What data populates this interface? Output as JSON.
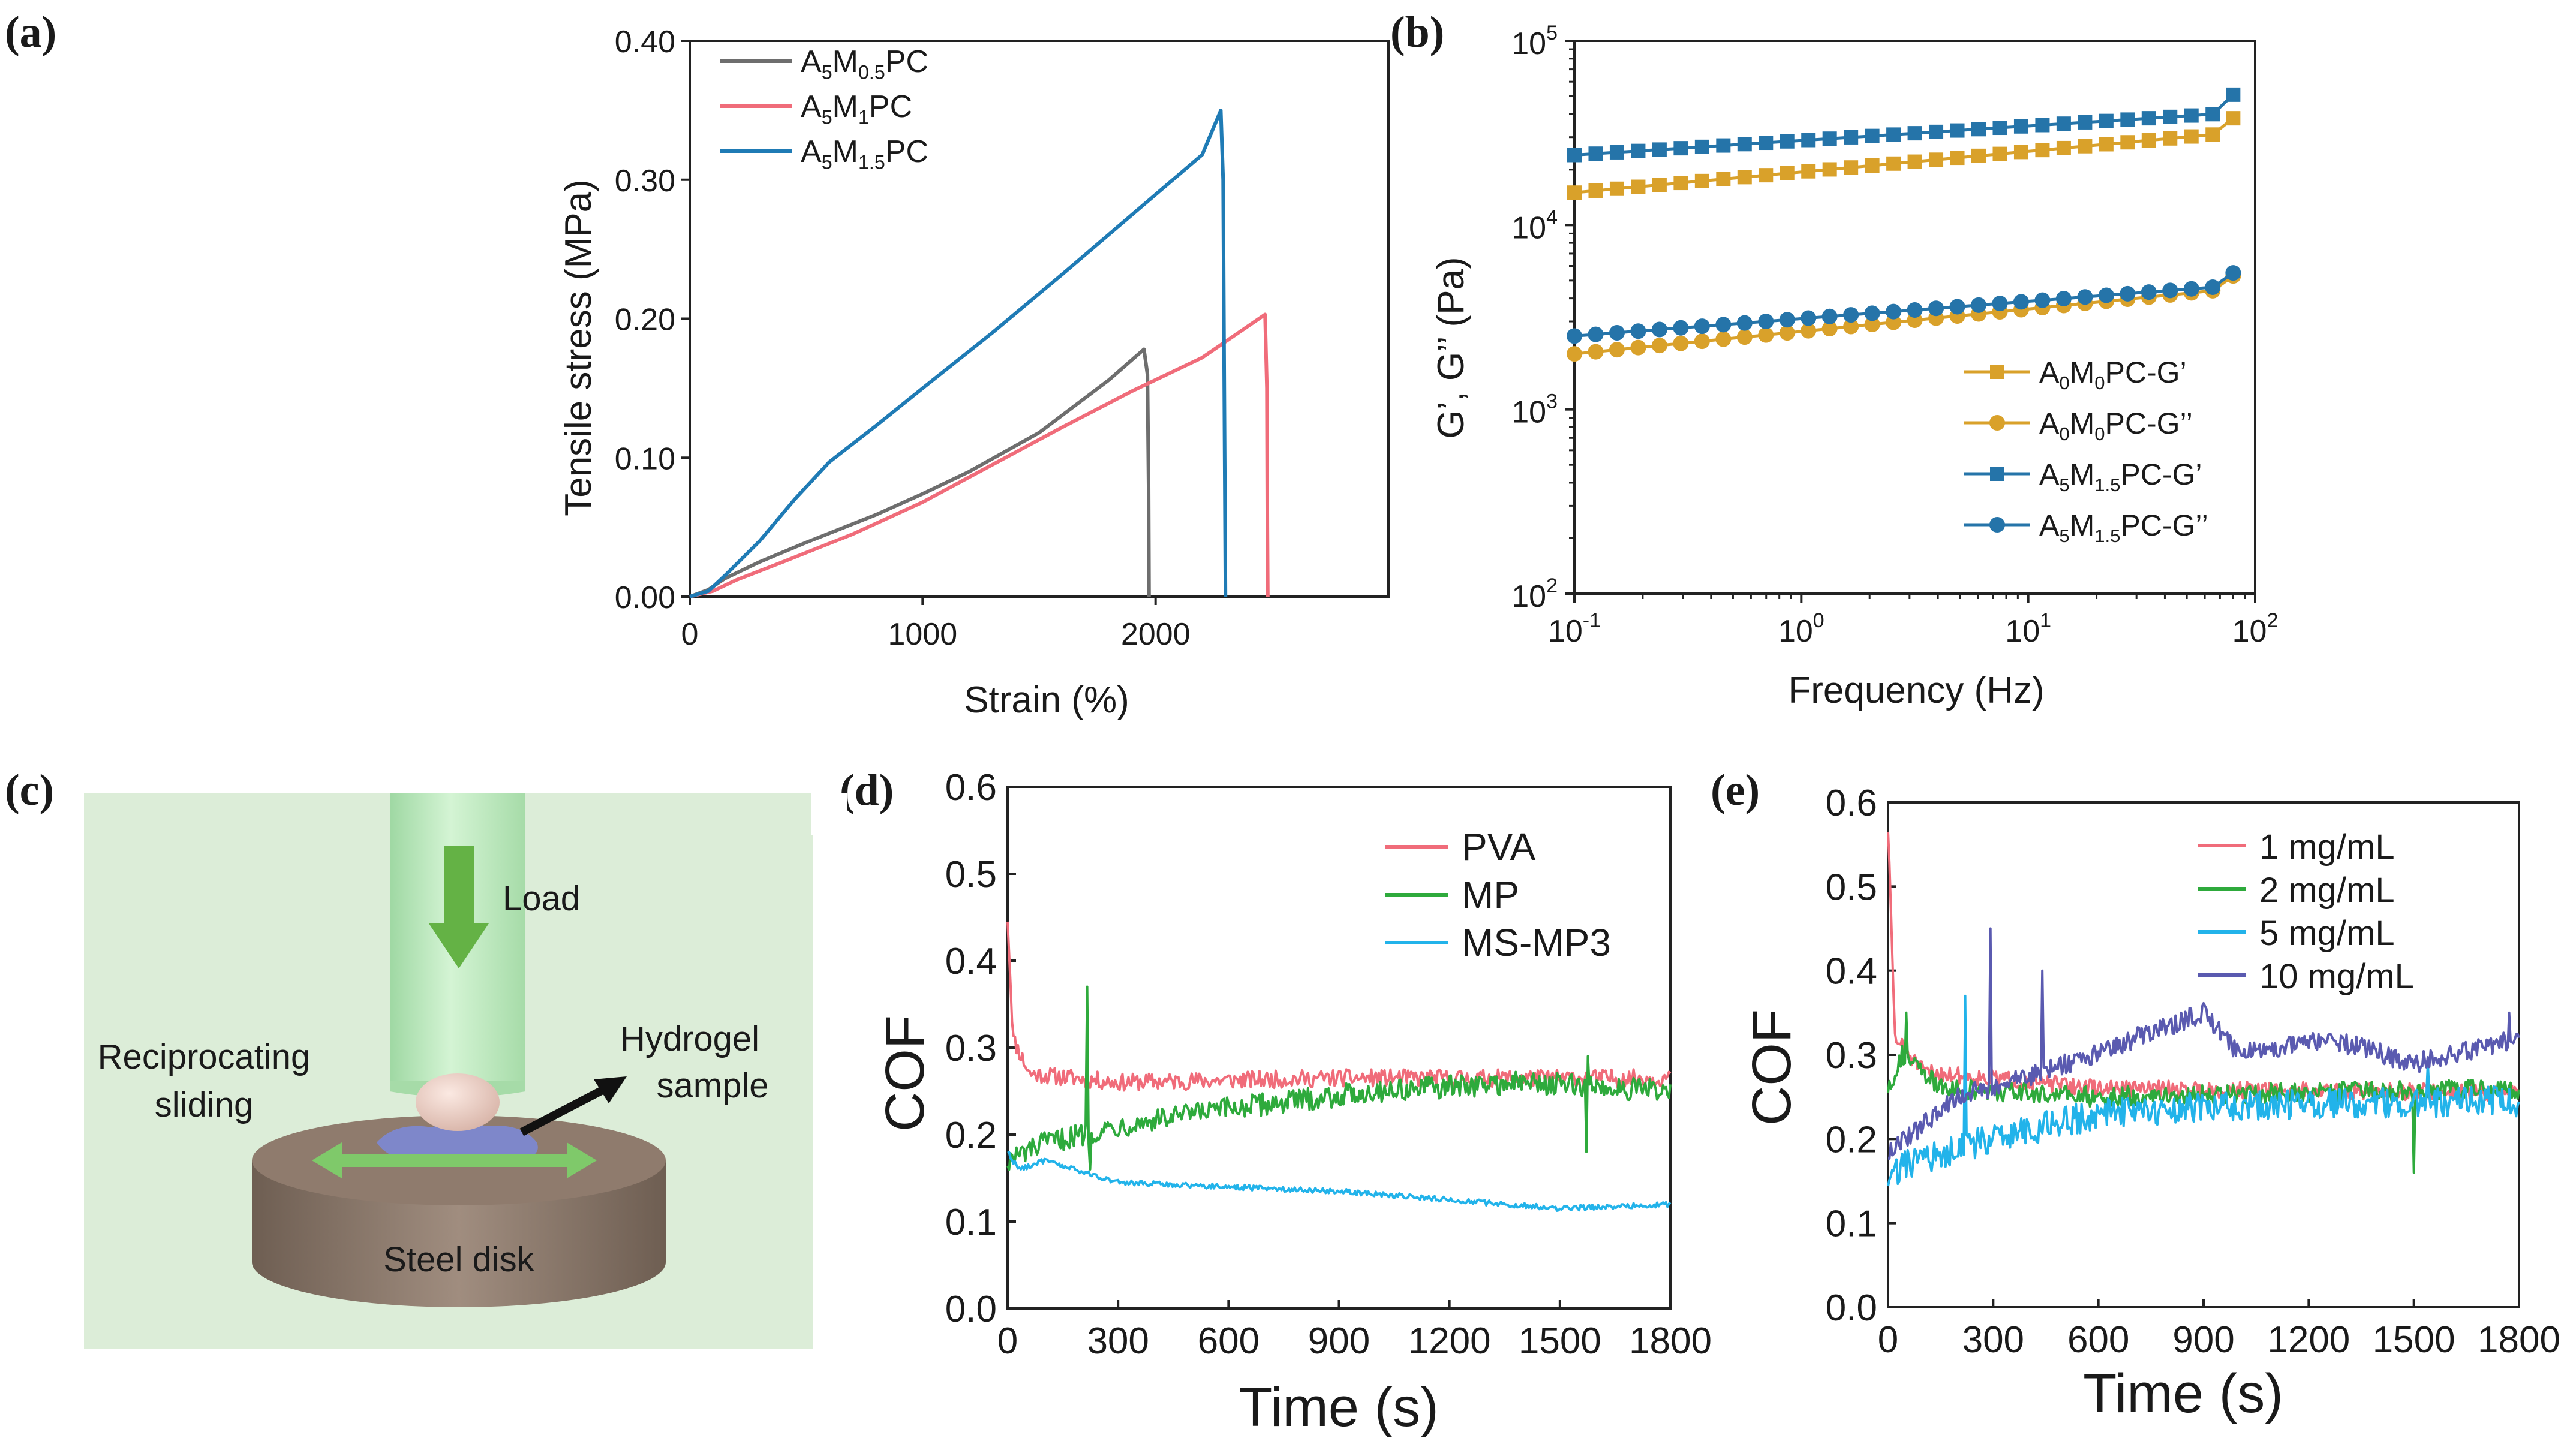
{
  "panel_labels": [
    "(a)",
    "(b)",
    "(c)",
    "(d)",
    "(e)"
  ],
  "colors": {
    "gray": "#6e6e6e",
    "pink": "#f06c7a",
    "blue": "#1f7bb5",
    "gold": "#d9a12a",
    "teal": "#2574a9",
    "green": "#2eaa3c",
    "cyan": "#22b3ea",
    "purple": "#5a5ab0",
    "diagram_bg": "#dcedd8",
    "shaft": "#bfe8c0",
    "disk": "#8a7769",
    "arrow_green": "#64b245",
    "hydrogel": "#7d88d0"
  },
  "diagram": {
    "load": "Load",
    "sliding": [
      "Reciprocating",
      "sliding"
    ],
    "sample": [
      "Hydrogel",
      "sample"
    ],
    "disk": "Steel disk"
  },
  "chart_data": [
    {
      "id": "a",
      "type": "line",
      "xlabel": "Strain (%)",
      "ylabel": "Tensile stress (MPa)",
      "xlim": [
        0,
        3000
      ],
      "ylim": [
        0,
        0.4
      ],
      "xticks": [
        "0",
        "1000",
        "2000"
      ],
      "yticks": [
        "0.00",
        "0.10",
        "0.20",
        "0.30",
        "0.40"
      ],
      "legend_position": "top-left",
      "series": [
        {
          "name": "A5M0.5PC",
          "base": "A",
          "sub1": "5",
          "mid": "M",
          "sub2": "0.5",
          "tail": "PC",
          "color": "#6e6e6e",
          "points": [
            [
              0,
              0
            ],
            [
              80,
              0.005
            ],
            [
              150,
              0.013
            ],
            [
              300,
              0.025
            ],
            [
              500,
              0.039
            ],
            [
              800,
              0.059
            ],
            [
              1000,
              0.074
            ],
            [
              1200,
              0.09
            ],
            [
              1500,
              0.118
            ],
            [
              1800,
              0.156
            ],
            [
              1950,
              0.178
            ],
            [
              1965,
              0.16
            ],
            [
              1970,
              0.08
            ],
            [
              1972,
              0.0
            ]
          ]
        },
        {
          "name": "A5M1PC",
          "base": "A",
          "sub1": "5",
          "mid": "M",
          "sub2": "1",
          "tail": "PC",
          "color": "#f06c7a",
          "points": [
            [
              0,
              0
            ],
            [
              100,
              0.004
            ],
            [
              200,
              0.012
            ],
            [
              400,
              0.025
            ],
            [
              700,
              0.045
            ],
            [
              1000,
              0.068
            ],
            [
              1300,
              0.095
            ],
            [
              1600,
              0.122
            ],
            [
              1900,
              0.148
            ],
            [
              2200,
              0.172
            ],
            [
              2470,
              0.203
            ],
            [
              2478,
              0.15
            ],
            [
              2480,
              0.05
            ],
            [
              2482,
              0.0
            ]
          ]
        },
        {
          "name": "A5M1.5PC",
          "base": "A",
          "sub1": "5",
          "mid": "M",
          "sub2": "1.5",
          "tail": "PC",
          "color": "#1f7bb5",
          "points": [
            [
              0,
              0
            ],
            [
              80,
              0.004
            ],
            [
              150,
              0.015
            ],
            [
              300,
              0.04
            ],
            [
              450,
              0.07
            ],
            [
              600,
              0.097
            ],
            [
              800,
              0.123
            ],
            [
              1000,
              0.15
            ],
            [
              1300,
              0.19
            ],
            [
              1600,
              0.232
            ],
            [
              1900,
              0.275
            ],
            [
              2200,
              0.318
            ],
            [
              2280,
              0.35
            ],
            [
              2290,
              0.3
            ],
            [
              2295,
              0.15
            ],
            [
              2300,
              0.0
            ]
          ]
        }
      ]
    },
    {
      "id": "b",
      "type": "line",
      "xlabel": "Frequency (Hz)",
      "ylabel": "G’, G’’ (Pa)",
      "xscale": "log",
      "yscale": "log",
      "xlim": [
        0.1,
        100
      ],
      "ylim": [
        100,
        100000
      ],
      "xticks": [
        {
          "b": "10",
          "e": "-1"
        },
        {
          "b": "10",
          "e": "0"
        },
        {
          "b": "10",
          "e": "1"
        },
        {
          "b": "10",
          "e": "2"
        }
      ],
      "yticks": [
        {
          "b": "10",
          "e": "2"
        },
        {
          "b": "10",
          "e": "3"
        },
        {
          "b": "10",
          "e": "4"
        },
        {
          "b": "10",
          "e": "5"
        }
      ],
      "legend_position": "bottom-right",
      "series": [
        {
          "name": "A0M0PC-G’",
          "base": "A",
          "sub1": "0",
          "mid": "M",
          "sub2": "0",
          "tail": "PC-G’",
          "color": "#d9a12a",
          "marker": "square",
          "start": 15000,
          "end": 31000,
          "last": 38000
        },
        {
          "name": "A0M0PC-G’’",
          "base": "A",
          "sub1": "0",
          "mid": "M",
          "sub2": "0",
          "tail": "PC-G’’",
          "color": "#d9a12a",
          "marker": "circle",
          "start": 2000,
          "end": 4400,
          "last": 5300
        },
        {
          "name": "A5M1.5PC-G’",
          "base": "A",
          "sub1": "5",
          "mid": "M",
          "sub2": "1.5",
          "tail": "PC-G’",
          "color": "#2574a9",
          "marker": "square",
          "start": 24000,
          "end": 40000,
          "last": 51000
        },
        {
          "name": "A5M1.5PC-G’’",
          "base": "A",
          "sub1": "5",
          "mid": "M",
          "sub2": "1.5",
          "tail": "PC-G’’",
          "color": "#2574a9",
          "marker": "circle",
          "start": 2500,
          "end": 4600,
          "last": 5500
        }
      ]
    },
    {
      "id": "d",
      "type": "line",
      "xlabel": "Time (s)",
      "ylabel": "COF",
      "xlim": [
        0,
        1800
      ],
      "ylim": [
        0,
        0.6
      ],
      "xticks": [
        "0",
        "300",
        "600",
        "900",
        "1200",
        "1500",
        "1800"
      ],
      "yticks": [
        "0.0",
        "0.1",
        "0.2",
        "0.3",
        "0.4",
        "0.5",
        "0.6"
      ],
      "legend_position": "top-right",
      "series": [
        {
          "name": "PVA",
          "color": "#f06c7a",
          "trend": [
            [
              0,
              0.45
            ],
            [
              15,
              0.31
            ],
            [
              60,
              0.27
            ],
            [
              300,
              0.26
            ],
            [
              900,
              0.265
            ],
            [
              1800,
              0.265
            ]
          ],
          "noise": 0.01
        },
        {
          "name": "MP",
          "color": "#2eaa3c",
          "trend": [
            [
              0,
              0.17
            ],
            [
              100,
              0.19
            ],
            [
              300,
              0.21
            ],
            [
              600,
              0.23
            ],
            [
              1000,
              0.25
            ],
            [
              1400,
              0.26
            ],
            [
              1800,
              0.25
            ]
          ],
          "noise": 0.013,
          "spikes": [
            [
              215,
              0.37
            ],
            [
              225,
              0.16
            ],
            [
              1570,
              0.18
            ],
            [
              1575,
              0.29
            ]
          ]
        },
        {
          "name": "MS-MP3",
          "color": "#22b3ea",
          "trend": [
            [
              0,
              0.18
            ],
            [
              30,
              0.16
            ],
            [
              100,
              0.17
            ],
            [
              300,
              0.145
            ],
            [
              900,
              0.135
            ],
            [
              1200,
              0.125
            ],
            [
              1500,
              0.115
            ],
            [
              1800,
              0.12
            ]
          ],
          "noise": 0.003
        }
      ]
    },
    {
      "id": "e",
      "type": "line",
      "xlabel": "Time (s)",
      "ylabel": "COF",
      "xlim": [
        0,
        1800
      ],
      "ylim": [
        0,
        0.6
      ],
      "xticks": [
        "0",
        "300",
        "600",
        "900",
        "1200",
        "1500",
        "1800"
      ],
      "yticks": [
        "0.0",
        "0.1",
        "0.2",
        "0.3",
        "0.4",
        "0.5",
        "0.6"
      ],
      "legend_position": "top-right",
      "series": [
        {
          "name": "1 mg/mL",
          "color": "#f06c7a",
          "trend": [
            [
              0,
              0.57
            ],
            [
              20,
              0.32
            ],
            [
              100,
              0.28
            ],
            [
              600,
              0.26
            ],
            [
              1800,
              0.255
            ]
          ],
          "noise": 0.01
        },
        {
          "name": "2 mg/mL",
          "color": "#2eaa3c",
          "trend": [
            [
              0,
              0.26
            ],
            [
              40,
              0.3
            ],
            [
              150,
              0.26
            ],
            [
              600,
              0.25
            ],
            [
              1800,
              0.26
            ]
          ],
          "noise": 0.012,
          "spikes": [
            [
              50,
              0.35
            ],
            [
              1500,
              0.16
            ]
          ]
        },
        {
          "name": "5 mg/mL",
          "color": "#22b3ea",
          "trend": [
            [
              0,
              0.15
            ],
            [
              50,
              0.17
            ],
            [
              300,
              0.2
            ],
            [
              600,
              0.23
            ],
            [
              1000,
              0.24
            ],
            [
              1800,
              0.245
            ]
          ],
          "noise": 0.018,
          "spikes": [
            [
              220,
              0.37
            ],
            [
              1540,
              0.29
            ]
          ]
        },
        {
          "name": "10 mg/mL",
          "color": "#5a5ab0",
          "trend": [
            [
              0,
              0.18
            ],
            [
              50,
              0.2
            ],
            [
              200,
              0.25
            ],
            [
              450,
              0.28
            ],
            [
              900,
              0.35
            ],
            [
              1000,
              0.3
            ],
            [
              1250,
              0.32
            ],
            [
              1500,
              0.29
            ],
            [
              1800,
              0.32
            ]
          ],
          "noise": 0.012,
          "spikes": [
            [
              290,
              0.45
            ],
            [
              440,
              0.4
            ],
            [
              1770,
              0.35
            ]
          ]
        }
      ]
    }
  ]
}
